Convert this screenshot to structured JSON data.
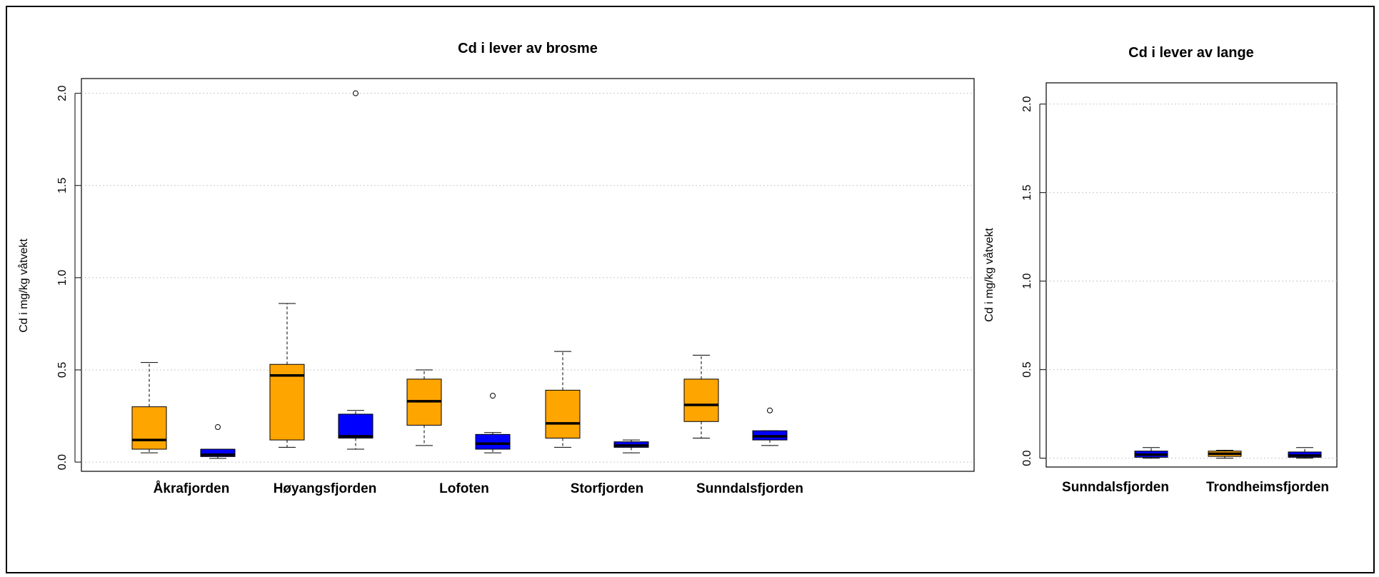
{
  "chart_data": [
    {
      "type": "box",
      "title": "Cd i lever av brosme",
      "ylabel": "Cd i mg/kg våtvekt",
      "ylim": [
        -0.05,
        2.08
      ],
      "yticks": [
        0.0,
        0.5,
        1.0,
        1.5,
        2.0
      ],
      "ytick_labels": [
        "0.0",
        "0.5",
        "1.0",
        "1.5",
        "2.0"
      ],
      "grid": "horizontal dotted",
      "categories": [
        "Åkrafjorden",
        "Høyangsfjorden",
        "Lofoten",
        "Storfjorden",
        "Sunndalsfjorden"
      ],
      "series_colors": [
        "#FFA500",
        "#0000FF"
      ],
      "boxes": [
        {
          "category": "Åkrafjorden",
          "color": "#FFA500",
          "min": 0.05,
          "q1": 0.07,
          "median": 0.12,
          "q3": 0.3,
          "max": 0.54,
          "outliers": []
        },
        {
          "category": "Åkrafjorden",
          "color": "#0000FF",
          "min": 0.02,
          "q1": 0.03,
          "median": 0.04,
          "q3": 0.07,
          "max": 0.07,
          "outliers": [
            0.19
          ]
        },
        {
          "category": "Høyangsfjorden",
          "color": "#FFA500",
          "min": 0.08,
          "q1": 0.12,
          "median": 0.47,
          "q3": 0.53,
          "max": 0.86,
          "outliers": []
        },
        {
          "category": "Høyangsfjorden",
          "color": "#0000FF",
          "min": 0.07,
          "q1": 0.13,
          "median": 0.14,
          "q3": 0.26,
          "max": 0.28,
          "outliers": [
            2.0
          ]
        },
        {
          "category": "Lofoten",
          "color": "#FFA500",
          "min": 0.09,
          "q1": 0.2,
          "median": 0.33,
          "q3": 0.45,
          "max": 0.5,
          "outliers": []
        },
        {
          "category": "Lofoten",
          "color": "#0000FF",
          "min": 0.05,
          "q1": 0.07,
          "median": 0.1,
          "q3": 0.15,
          "max": 0.16,
          "outliers": [
            0.36
          ]
        },
        {
          "category": "Storfjorden",
          "color": "#FFA500",
          "min": 0.08,
          "q1": 0.13,
          "median": 0.21,
          "q3": 0.39,
          "max": 0.6,
          "outliers": []
        },
        {
          "category": "Storfjorden",
          "color": "#0000FF",
          "min": 0.05,
          "q1": 0.08,
          "median": 0.09,
          "q3": 0.11,
          "max": 0.12,
          "outliers": []
        },
        {
          "category": "Sunndalsfjorden",
          "color": "#FFA500",
          "min": 0.13,
          "q1": 0.22,
          "median": 0.31,
          "q3": 0.45,
          "max": 0.58,
          "outliers": []
        },
        {
          "category": "Sunndalsfjorden",
          "color": "#0000FF",
          "min": 0.09,
          "q1": 0.12,
          "median": 0.14,
          "q3": 0.17,
          "max": 0.17,
          "outliers": [
            0.28
          ]
        }
      ]
    },
    {
      "type": "box",
      "title": "Cd i lever av lange",
      "ylabel": "Cd i mg/kg våtvekt",
      "ylim": [
        -0.05,
        2.12
      ],
      "yticks": [
        0.0,
        0.5,
        1.0,
        1.5,
        2.0
      ],
      "ytick_labels": [
        "0.0",
        "0.5",
        "1.0",
        "1.5",
        "2.0"
      ],
      "grid": "horizontal dotted",
      "categories": [
        "Sunndalsfjorden",
        "Trondheimsfjorden"
      ],
      "series_colors": [
        "#FFA500",
        "#0000FF"
      ],
      "boxes": [
        {
          "category": "Sunndalsfjorden",
          "color": "#0000FF",
          "min": 0.0,
          "q1": 0.005,
          "median": 0.02,
          "q3": 0.04,
          "max": 0.06,
          "outliers": []
        },
        {
          "category": "Trondheimsfjorden",
          "color": "#FFA500",
          "min": 0.0,
          "q1": 0.01,
          "median": 0.025,
          "q3": 0.04,
          "max": 0.045,
          "outliers": []
        },
        {
          "category": "Trondheimsfjorden",
          "color": "#0000FF",
          "min": 0.0,
          "q1": 0.005,
          "median": 0.015,
          "q3": 0.035,
          "max": 0.06,
          "outliers": []
        }
      ]
    }
  ]
}
